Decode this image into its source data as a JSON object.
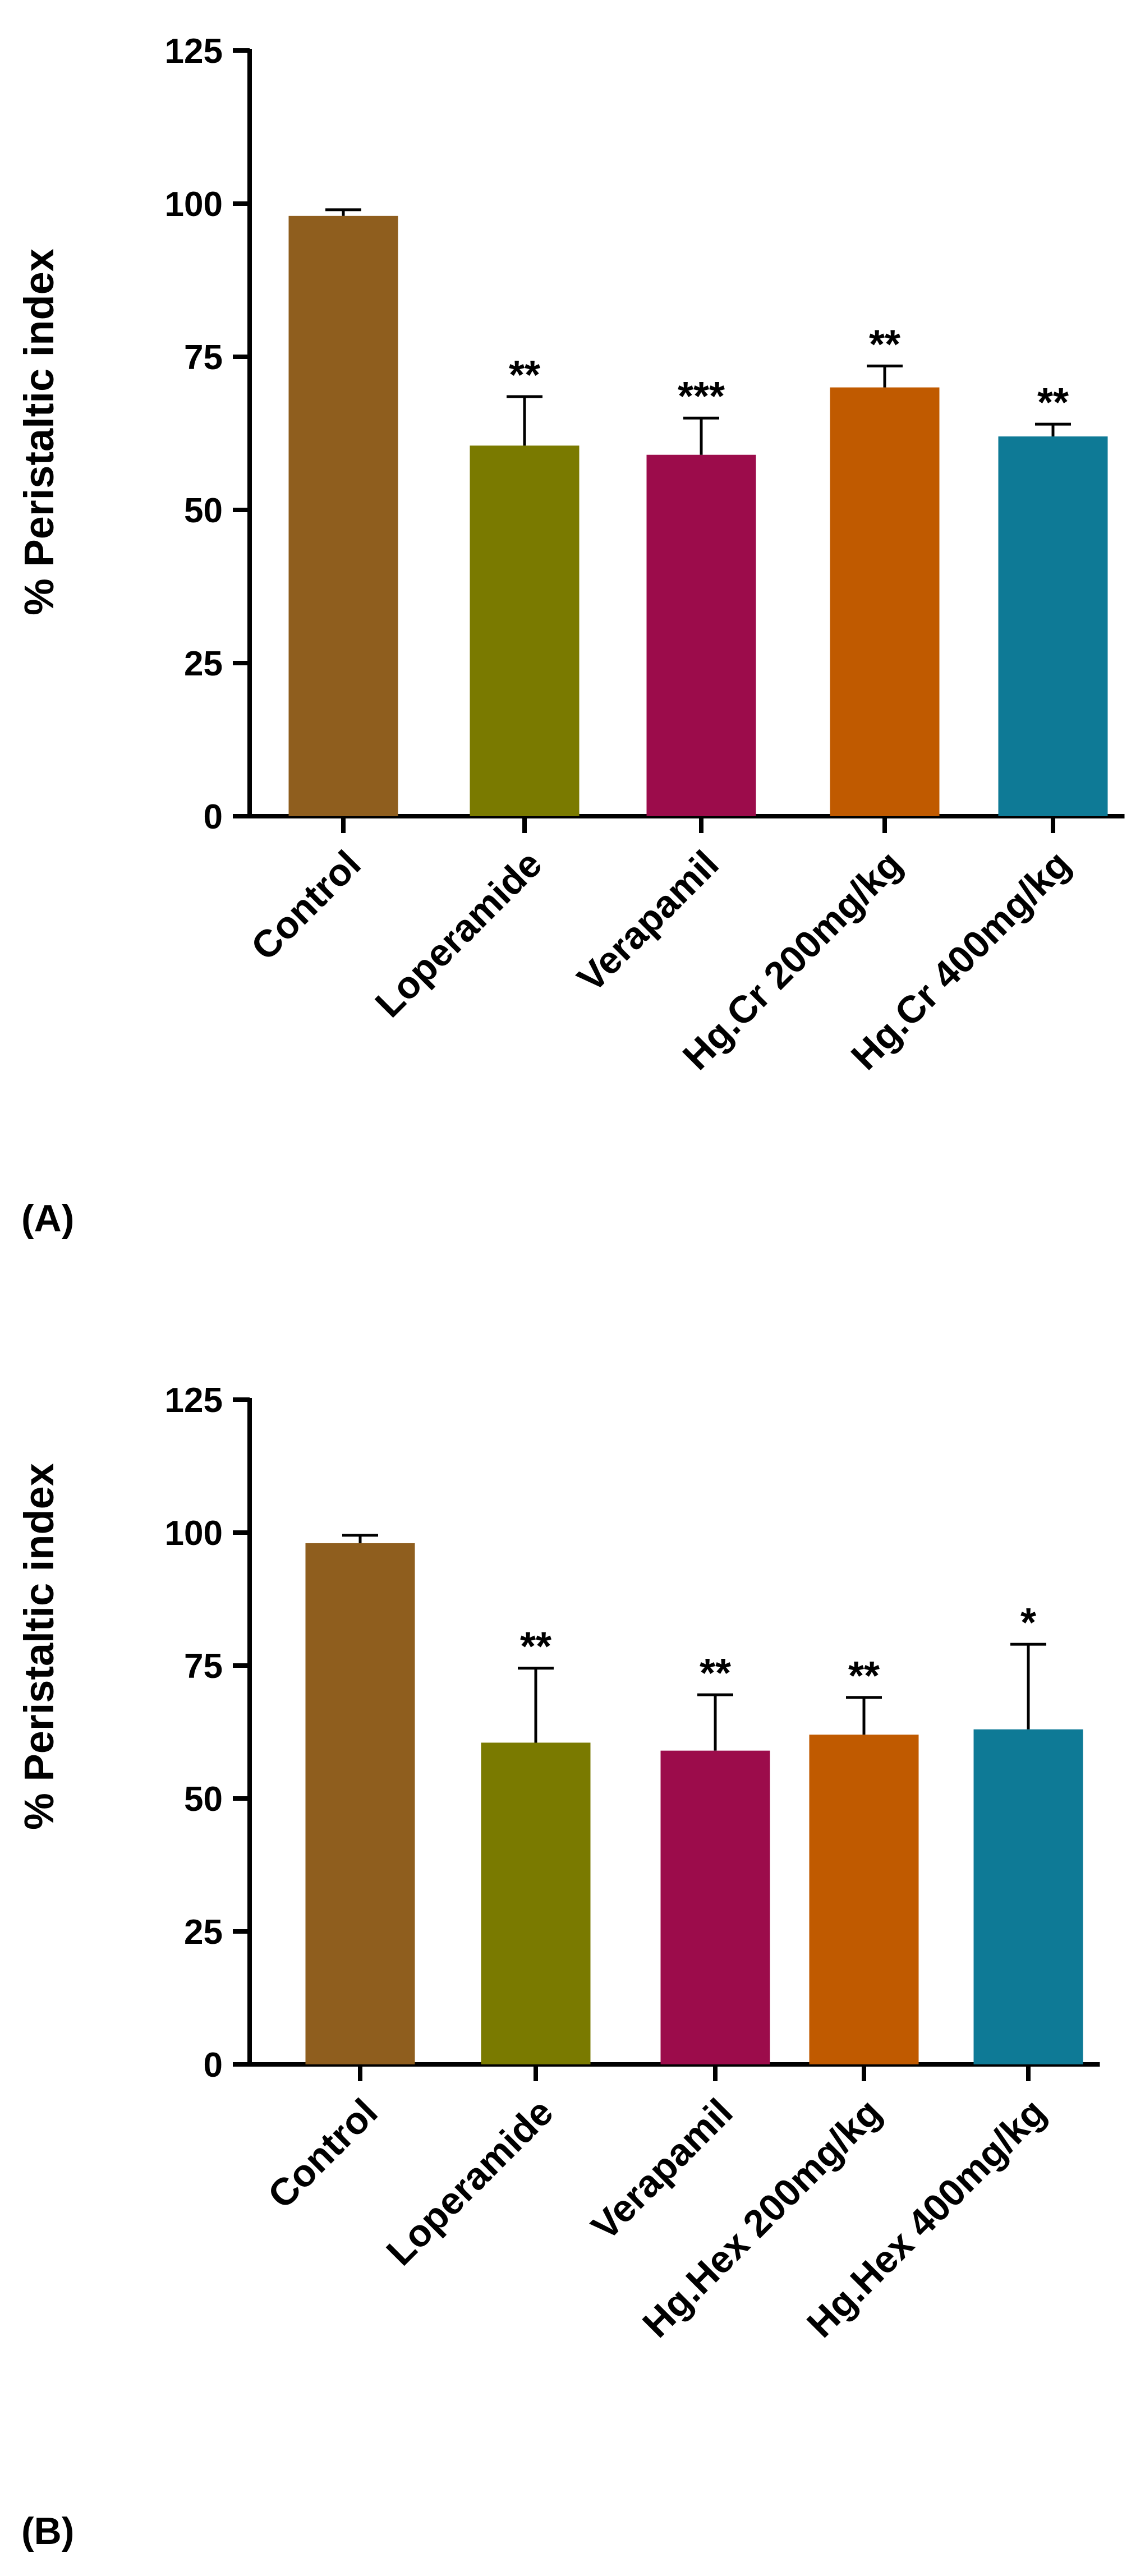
{
  "chart_data": [
    {
      "type": "bar",
      "panel_label": "(A)",
      "ylabel": "% Peristaltic index",
      "xlabel": "",
      "ylim": [
        0,
        125
      ],
      "yticks": [
        "0",
        "25",
        "50",
        "75",
        "100",
        "125"
      ],
      "categories": [
        "Control",
        "Loperamide",
        "Verapamil",
        "Hg.Cr 200mg/kg",
        "Hg.Cr 400mg/kg"
      ],
      "values": [
        98,
        60.5,
        59,
        70,
        62
      ],
      "errors": [
        1,
        8,
        6,
        3.5,
        2
      ],
      "significance": [
        "",
        "**",
        "***",
        "**",
        "**"
      ],
      "colors": [
        "#8f5e1e",
        "#7a7a00",
        "#9c0c4b",
        "#c05a00",
        "#0e7a96"
      ]
    },
    {
      "type": "bar",
      "panel_label": "(B)",
      "ylabel": "% Peristaltic index",
      "xlabel": "",
      "ylim": [
        0,
        125
      ],
      "yticks": [
        "0",
        "25",
        "50",
        "75",
        "100",
        "125"
      ],
      "categories": [
        "Control",
        "Loperamide",
        "Verapamil",
        "Hg.Hex 200mg/kg",
        "Hg.Hex 400mg/kg"
      ],
      "values": [
        98,
        60.5,
        59,
        62,
        63
      ],
      "errors": [
        1.5,
        14,
        10.5,
        7,
        16
      ],
      "significance": [
        "",
        "**",
        "**",
        "**",
        "*"
      ],
      "colors": [
        "#8f5e1e",
        "#7a7a00",
        "#9c0c4b",
        "#c05a00",
        "#0e7a96"
      ]
    }
  ]
}
